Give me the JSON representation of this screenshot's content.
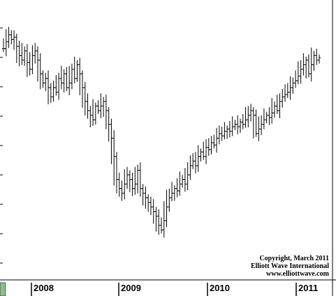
{
  "chart_data": {
    "type": "ohlc-bar",
    "x_tick_labels": [
      "2008",
      "2009",
      "2010",
      "2011"
    ],
    "x_range": [
      "2007-09",
      "2011-03"
    ],
    "ylim": [
      0,
      100
    ],
    "grid": false,
    "colors": {
      "bars": "#000000",
      "background": "#ffffff",
      "axis_marker": "#8fbc8f"
    },
    "series": [
      {
        "values": [
          91,
          94,
          97,
          95,
          96,
          92,
          88,
          86,
          90,
          85,
          82,
          88,
          90,
          86,
          80,
          76,
          78,
          74,
          70,
          74,
          72,
          78,
          76,
          80,
          74,
          76,
          82,
          78,
          84,
          80,
          74,
          68,
          64,
          62,
          60,
          66,
          64,
          66,
          68,
          64,
          58,
          52,
          44,
          34,
          30,
          28,
          32,
          36,
          34,
          30,
          32,
          38,
          30,
          28,
          26,
          24,
          22,
          20,
          18,
          14,
          12,
          16,
          22,
          26,
          28,
          30,
          29,
          32,
          34,
          32,
          36,
          40,
          42,
          40,
          44,
          46,
          44,
          48,
          47,
          50,
          49,
          52,
          54,
          53,
          55,
          56,
          55,
          57,
          58,
          57,
          59,
          58,
          60,
          62,
          64,
          62,
          54,
          56,
          58,
          60,
          62,
          61,
          63,
          66,
          64,
          68,
          70,
          71,
          72,
          74,
          76,
          77,
          79,
          82,
          84,
          86,
          80,
          84,
          88,
          86,
          87
        ]
      }
    ],
    "annotations": [
      "Copyright, March 2011",
      "Elliott Wave International",
      "www.elliottwave.com"
    ]
  }
}
